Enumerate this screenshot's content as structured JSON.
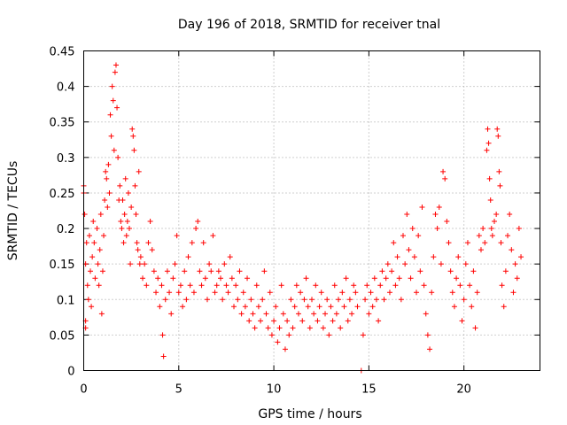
{
  "chart_data": {
    "type": "scatter",
    "title": "Day 196 of 2018, SRMTID for receiver tnal",
    "xlabel": "GPS time / hours",
    "ylabel": "SRMTID / TECUs",
    "xlim": [
      0,
      24
    ],
    "ylim": [
      0,
      0.45
    ],
    "xticks": [
      0,
      5,
      10,
      15,
      20
    ],
    "xtick_labels": [
      "0",
      "5",
      "10",
      "15",
      "20"
    ],
    "yticks": [
      0,
      0.05,
      0.1,
      0.15,
      0.2,
      0.25,
      0.3,
      0.35,
      0.4,
      0.45
    ],
    "ytick_labels": [
      "0",
      "0.05",
      "0.1",
      "0.15",
      "0.2",
      "0.25",
      "0.3",
      "0.35",
      "0.4",
      "0.45"
    ],
    "grid": true,
    "marker": "+",
    "color": "#ff0000",
    "series": [
      {
        "name": "SRMTID",
        "points": [
          [
            0.0,
            0.26
          ],
          [
            0.0,
            0.25
          ],
          [
            0.05,
            0.22
          ],
          [
            0.1,
            0.07
          ],
          [
            0.1,
            0.06
          ],
          [
            0.1,
            0.15
          ],
          [
            0.15,
            0.18
          ],
          [
            0.2,
            0.12
          ],
          [
            0.25,
            0.1
          ],
          [
            0.3,
            0.19
          ],
          [
            0.35,
            0.14
          ],
          [
            0.4,
            0.09
          ],
          [
            0.45,
            0.16
          ],
          [
            0.5,
            0.21
          ],
          [
            0.55,
            0.18
          ],
          [
            0.6,
            0.13
          ],
          [
            0.7,
            0.2
          ],
          [
            0.75,
            0.15
          ],
          [
            0.8,
            0.12
          ],
          [
            0.85,
            0.17
          ],
          [
            0.9,
            0.22
          ],
          [
            0.95,
            0.08
          ],
          [
            1.0,
            0.14
          ],
          [
            1.05,
            0.19
          ],
          [
            1.1,
            0.24
          ],
          [
            1.15,
            0.28
          ],
          [
            1.2,
            0.27
          ],
          [
            1.25,
            0.23
          ],
          [
            1.3,
            0.29
          ],
          [
            1.35,
            0.25
          ],
          [
            1.4,
            0.36
          ],
          [
            1.45,
            0.33
          ],
          [
            1.5,
            0.4
          ],
          [
            1.55,
            0.38
          ],
          [
            1.6,
            0.31
          ],
          [
            1.65,
            0.42
          ],
          [
            1.7,
            0.43
          ],
          [
            1.75,
            0.37
          ],
          [
            1.8,
            0.3
          ],
          [
            1.85,
            0.24
          ],
          [
            1.9,
            0.26
          ],
          [
            1.95,
            0.21
          ],
          [
            2.0,
            0.2
          ],
          [
            2.05,
            0.24
          ],
          [
            2.1,
            0.18
          ],
          [
            2.15,
            0.22
          ],
          [
            2.2,
            0.27
          ],
          [
            2.25,
            0.19
          ],
          [
            2.3,
            0.21
          ],
          [
            2.35,
            0.25
          ],
          [
            2.4,
            0.2
          ],
          [
            2.45,
            0.15
          ],
          [
            2.5,
            0.23
          ],
          [
            2.55,
            0.34
          ],
          [
            2.6,
            0.33
          ],
          [
            2.65,
            0.31
          ],
          [
            2.7,
            0.26
          ],
          [
            2.75,
            0.22
          ],
          [
            2.8,
            0.18
          ],
          [
            2.85,
            0.17
          ],
          [
            2.9,
            0.28
          ],
          [
            2.95,
            0.15
          ],
          [
            3.0,
            0.16
          ],
          [
            3.1,
            0.13
          ],
          [
            3.2,
            0.15
          ],
          [
            3.3,
            0.12
          ],
          [
            3.4,
            0.18
          ],
          [
            3.5,
            0.21
          ],
          [
            3.6,
            0.17
          ],
          [
            3.7,
            0.14
          ],
          [
            3.8,
            0.11
          ],
          [
            3.9,
            0.13
          ],
          [
            4.0,
            0.09
          ],
          [
            4.1,
            0.12
          ],
          [
            4.15,
            0.05
          ],
          [
            4.2,
            0.02
          ],
          [
            4.3,
            0.1
          ],
          [
            4.4,
            0.14
          ],
          [
            4.5,
            0.11
          ],
          [
            4.6,
            0.08
          ],
          [
            4.7,
            0.13
          ],
          [
            4.8,
            0.15
          ],
          [
            4.9,
            0.19
          ],
          [
            5.0,
            0.11
          ],
          [
            5.1,
            0.12
          ],
          [
            5.2,
            0.09
          ],
          [
            5.3,
            0.14
          ],
          [
            5.4,
            0.1
          ],
          [
            5.5,
            0.16
          ],
          [
            5.6,
            0.12
          ],
          [
            5.7,
            0.18
          ],
          [
            5.8,
            0.11
          ],
          [
            5.9,
            0.2
          ],
          [
            6.0,
            0.21
          ],
          [
            6.1,
            0.14
          ],
          [
            6.2,
            0.12
          ],
          [
            6.3,
            0.18
          ],
          [
            6.4,
            0.13
          ],
          [
            6.5,
            0.1
          ],
          [
            6.6,
            0.15
          ],
          [
            6.7,
            0.14
          ],
          [
            6.8,
            0.19
          ],
          [
            6.9,
            0.11
          ],
          [
            7.0,
            0.12
          ],
          [
            7.1,
            0.14
          ],
          [
            7.2,
            0.13
          ],
          [
            7.3,
            0.1
          ],
          [
            7.4,
            0.15
          ],
          [
            7.5,
            0.12
          ],
          [
            7.6,
            0.11
          ],
          [
            7.7,
            0.16
          ],
          [
            7.8,
            0.13
          ],
          [
            7.9,
            0.09
          ],
          [
            8.0,
            0.12
          ],
          [
            8.1,
            0.1
          ],
          [
            8.2,
            0.14
          ],
          [
            8.3,
            0.08
          ],
          [
            8.4,
            0.11
          ],
          [
            8.5,
            0.09
          ],
          [
            8.6,
            0.13
          ],
          [
            8.7,
            0.07
          ],
          [
            8.8,
            0.1
          ],
          [
            8.9,
            0.08
          ],
          [
            9.0,
            0.06
          ],
          [
            9.1,
            0.12
          ],
          [
            9.2,
            0.09
          ],
          [
            9.3,
            0.07
          ],
          [
            9.4,
            0.1
          ],
          [
            9.5,
            0.14
          ],
          [
            9.6,
            0.08
          ],
          [
            9.7,
            0.06
          ],
          [
            9.8,
            0.11
          ],
          [
            9.9,
            0.05
          ],
          [
            10.0,
            0.07
          ],
          [
            10.1,
            0.09
          ],
          [
            10.2,
            0.04
          ],
          [
            10.3,
            0.06
          ],
          [
            10.4,
            0.12
          ],
          [
            10.5,
            0.08
          ],
          [
            10.6,
            0.03
          ],
          [
            10.7,
            0.07
          ],
          [
            10.8,
            0.05
          ],
          [
            10.9,
            0.1
          ],
          [
            11.0,
            0.06
          ],
          [
            11.1,
            0.09
          ],
          [
            11.2,
            0.12
          ],
          [
            11.3,
            0.08
          ],
          [
            11.4,
            0.11
          ],
          [
            11.5,
            0.07
          ],
          [
            11.6,
            0.1
          ],
          [
            11.7,
            0.13
          ],
          [
            11.8,
            0.09
          ],
          [
            11.9,
            0.06
          ],
          [
            12.0,
            0.1
          ],
          [
            12.1,
            0.08
          ],
          [
            12.2,
            0.12
          ],
          [
            12.3,
            0.07
          ],
          [
            12.4,
            0.09
          ],
          [
            12.5,
            0.11
          ],
          [
            12.6,
            0.06
          ],
          [
            12.7,
            0.08
          ],
          [
            12.8,
            0.1
          ],
          [
            12.9,
            0.05
          ],
          [
            13.0,
            0.09
          ],
          [
            13.1,
            0.07
          ],
          [
            13.2,
            0.12
          ],
          [
            13.3,
            0.08
          ],
          [
            13.4,
            0.1
          ],
          [
            13.5,
            0.06
          ],
          [
            13.6,
            0.11
          ],
          [
            13.7,
            0.09
          ],
          [
            13.8,
            0.13
          ],
          [
            13.9,
            0.07
          ],
          [
            14.0,
            0.1
          ],
          [
            14.1,
            0.08
          ],
          [
            14.2,
            0.12
          ],
          [
            14.3,
            0.11
          ],
          [
            14.4,
            0.09
          ],
          [
            14.6,
            0.0
          ],
          [
            14.7,
            0.05
          ],
          [
            14.8,
            0.1
          ],
          [
            14.9,
            0.12
          ],
          [
            15.0,
            0.08
          ],
          [
            15.1,
            0.11
          ],
          [
            15.2,
            0.09
          ],
          [
            15.3,
            0.13
          ],
          [
            15.4,
            0.1
          ],
          [
            15.5,
            0.07
          ],
          [
            15.6,
            0.12
          ],
          [
            15.7,
            0.14
          ],
          [
            15.8,
            0.1
          ],
          [
            15.9,
            0.13
          ],
          [
            16.0,
            0.15
          ],
          [
            16.1,
            0.11
          ],
          [
            16.2,
            0.14
          ],
          [
            16.3,
            0.18
          ],
          [
            16.4,
            0.12
          ],
          [
            16.5,
            0.16
          ],
          [
            16.6,
            0.13
          ],
          [
            16.7,
            0.1
          ],
          [
            16.8,
            0.19
          ],
          [
            16.9,
            0.15
          ],
          [
            17.0,
            0.22
          ],
          [
            17.1,
            0.17
          ],
          [
            17.2,
            0.13
          ],
          [
            17.3,
            0.2
          ],
          [
            17.4,
            0.16
          ],
          [
            17.5,
            0.11
          ],
          [
            17.6,
            0.19
          ],
          [
            17.7,
            0.14
          ],
          [
            17.8,
            0.23
          ],
          [
            17.9,
            0.12
          ],
          [
            18.0,
            0.08
          ],
          [
            18.1,
            0.05
          ],
          [
            18.2,
            0.03
          ],
          [
            18.3,
            0.11
          ],
          [
            18.4,
            0.16
          ],
          [
            18.5,
            0.22
          ],
          [
            18.6,
            0.2
          ],
          [
            18.7,
            0.23
          ],
          [
            18.8,
            0.15
          ],
          [
            18.9,
            0.28
          ],
          [
            19.0,
            0.27
          ],
          [
            19.1,
            0.21
          ],
          [
            19.2,
            0.18
          ],
          [
            19.3,
            0.14
          ],
          [
            19.4,
            0.11
          ],
          [
            19.5,
            0.09
          ],
          [
            19.6,
            0.13
          ],
          [
            19.7,
            0.16
          ],
          [
            19.8,
            0.12
          ],
          [
            19.9,
            0.07
          ],
          [
            20.0,
            0.1
          ],
          [
            20.1,
            0.15
          ],
          [
            20.2,
            0.18
          ],
          [
            20.3,
            0.12
          ],
          [
            20.4,
            0.09
          ],
          [
            20.5,
            0.14
          ],
          [
            20.6,
            0.06
          ],
          [
            20.7,
            0.11
          ],
          [
            20.8,
            0.19
          ],
          [
            20.9,
            0.17
          ],
          [
            21.0,
            0.2
          ],
          [
            21.1,
            0.18
          ],
          [
            21.2,
            0.31
          ],
          [
            21.25,
            0.34
          ],
          [
            21.3,
            0.32
          ],
          [
            21.35,
            0.27
          ],
          [
            21.4,
            0.24
          ],
          [
            21.45,
            0.2
          ],
          [
            21.5,
            0.19
          ],
          [
            21.6,
            0.21
          ],
          [
            21.7,
            0.22
          ],
          [
            21.75,
            0.34
          ],
          [
            21.8,
            0.33
          ],
          [
            21.85,
            0.28
          ],
          [
            21.9,
            0.26
          ],
          [
            21.95,
            0.18
          ],
          [
            22.0,
            0.12
          ],
          [
            22.1,
            0.09
          ],
          [
            22.2,
            0.14
          ],
          [
            22.3,
            0.19
          ],
          [
            22.4,
            0.22
          ],
          [
            22.5,
            0.17
          ],
          [
            22.6,
            0.11
          ],
          [
            22.7,
            0.15
          ],
          [
            22.8,
            0.13
          ],
          [
            22.9,
            0.2
          ],
          [
            23.0,
            0.16
          ]
        ]
      }
    ]
  }
}
